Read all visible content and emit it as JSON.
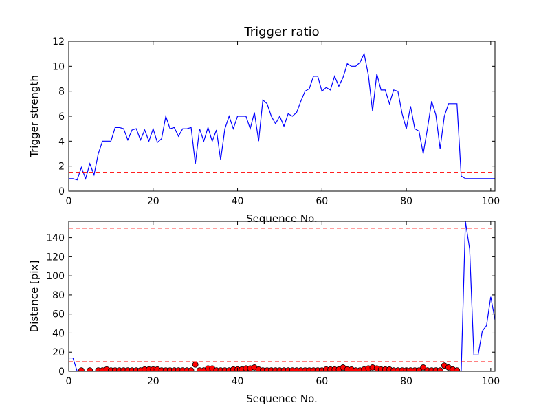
{
  "chart_data": [
    {
      "type": "line",
      "title": "Trigger ratio",
      "xlabel": "Sequence No.",
      "ylabel": "Trigger strength",
      "xlim": [
        0,
        101
      ],
      "ylim": [
        0,
        12
      ],
      "xticks": [
        0,
        20,
        40,
        60,
        80,
        100
      ],
      "yticks": [
        0,
        2,
        4,
        6,
        8,
        10,
        12
      ],
      "grid": false,
      "series": [
        {
          "color": "#0000ff",
          "style": "solid",
          "x": [
            0,
            1,
            2,
            3,
            4,
            5,
            6,
            7,
            8,
            9,
            10,
            11,
            12,
            13,
            14,
            15,
            16,
            17,
            18,
            19,
            20,
            21,
            22,
            23,
            24,
            25,
            26,
            27,
            28,
            29,
            30,
            31,
            32,
            33,
            34,
            35,
            36,
            37,
            38,
            39,
            40,
            41,
            42,
            43,
            44,
            45,
            46,
            47,
            48,
            49,
            50,
            51,
            52,
            53,
            54,
            55,
            56,
            57,
            58,
            59,
            60,
            61,
            62,
            63,
            64,
            65,
            66,
            67,
            68,
            69,
            70,
            71,
            72,
            73,
            74,
            75,
            76,
            77,
            78,
            79,
            80,
            81,
            82,
            83,
            84,
            85,
            86,
            87,
            88,
            89,
            90,
            91,
            92,
            93,
            94,
            95,
            96,
            97,
            98,
            99,
            100,
            101
          ],
          "values": [
            1.0,
            1.0,
            0.9,
            1.9,
            1.0,
            2.2,
            1.3,
            3.0,
            4.0,
            4.0,
            4.0,
            5.1,
            5.1,
            5.0,
            4.1,
            4.9,
            5.0,
            4.1,
            4.9,
            4.0,
            5.0,
            3.9,
            4.2,
            6.0,
            5.0,
            5.1,
            4.4,
            5.0,
            5.0,
            5.1,
            2.2,
            5.0,
            4.0,
            5.1,
            4.0,
            4.9,
            2.5,
            5.0,
            6.0,
            5.0,
            6.0,
            6.0,
            6.0,
            5.0,
            6.3,
            4.0,
            7.3,
            7.0,
            6.0,
            5.4,
            6.0,
            5.2,
            6.2,
            6.0,
            6.3,
            7.2,
            8.0,
            8.2,
            9.2,
            9.2,
            8.0,
            8.3,
            8.1,
            9.2,
            8.4,
            9.1,
            10.2,
            10.0,
            10.0,
            10.3,
            11.0,
            9.3,
            6.4,
            9.4,
            8.1,
            8.1,
            7.0,
            8.1,
            8.0,
            6.2,
            5.0,
            6.8,
            5.0,
            4.8,
            3.0,
            5.0,
            7.2,
            6.1,
            3.4,
            6.0,
            7.0,
            7.0,
            7.0,
            1.2,
            1.0,
            1.0,
            1.0,
            1.0,
            1.0,
            1.0,
            1.0,
            1.0
          ]
        },
        {
          "color": "#ff0000",
          "style": "dashed",
          "x": [
            0,
            101
          ],
          "values": [
            1.5,
            1.5
          ]
        }
      ]
    },
    {
      "type": "line",
      "title": "",
      "xlabel": "Sequence No.",
      "ylabel": "Distance [pix]",
      "xlim": [
        0,
        101
      ],
      "ylim": [
        0,
        157
      ],
      "xticks": [
        0,
        20,
        40,
        60,
        80,
        100
      ],
      "yticks": [
        0,
        20,
        40,
        60,
        80,
        100,
        120,
        140
      ],
      "grid": false,
      "series": [
        {
          "color": "#0000ff",
          "style": "solid",
          "x": [
            0,
            1,
            2,
            93,
            94,
            95,
            96,
            97,
            98,
            99,
            100,
            101
          ],
          "values": [
            14,
            14,
            0,
            0,
            157,
            128,
            17,
            17,
            42,
            48,
            78,
            54
          ]
        },
        {
          "color": "#ff0000",
          "style": "markers",
          "x": [
            3,
            5,
            7,
            8,
            9,
            10,
            11,
            12,
            13,
            14,
            15,
            16,
            17,
            18,
            19,
            20,
            21,
            22,
            23,
            24,
            25,
            26,
            27,
            28,
            29,
            30,
            31,
            32,
            33,
            34,
            35,
            36,
            37,
            38,
            39,
            40,
            41,
            42,
            43,
            44,
            45,
            46,
            47,
            48,
            49,
            50,
            51,
            52,
            53,
            54,
            55,
            56,
            57,
            58,
            59,
            60,
            61,
            62,
            63,
            64,
            65,
            66,
            67,
            68,
            69,
            70,
            71,
            72,
            73,
            74,
            75,
            76,
            77,
            78,
            79,
            80,
            81,
            82,
            83,
            84,
            85,
            86,
            87,
            88,
            89,
            90,
            91,
            92
          ],
          "values": [
            1,
            1,
            1,
            1,
            2,
            1,
            1,
            1,
            1,
            1,
            1,
            1,
            1,
            2,
            2,
            2,
            2,
            1,
            1,
            1,
            1,
            1,
            1,
            1,
            1,
            7,
            1,
            1,
            3,
            3,
            1,
            1,
            1,
            1,
            2,
            2,
            2,
            3,
            3,
            4,
            2,
            1,
            1,
            1,
            1,
            1,
            1,
            1,
            1,
            1,
            1,
            1,
            1,
            1,
            1,
            1,
            2,
            2,
            2,
            2,
            4,
            2,
            2,
            1,
            1,
            2,
            3,
            4,
            3,
            2,
            2,
            2,
            1,
            1,
            1,
            1,
            1,
            1,
            1,
            4,
            1,
            1,
            1,
            1,
            6,
            4,
            2,
            1
          ]
        },
        {
          "color": "#ff0000",
          "style": "dashed",
          "x": [
            0,
            101
          ],
          "values": [
            150,
            150
          ]
        },
        {
          "color": "#ff0000",
          "style": "dashed",
          "x": [
            0,
            101
          ],
          "values": [
            10,
            10
          ]
        }
      ]
    }
  ]
}
